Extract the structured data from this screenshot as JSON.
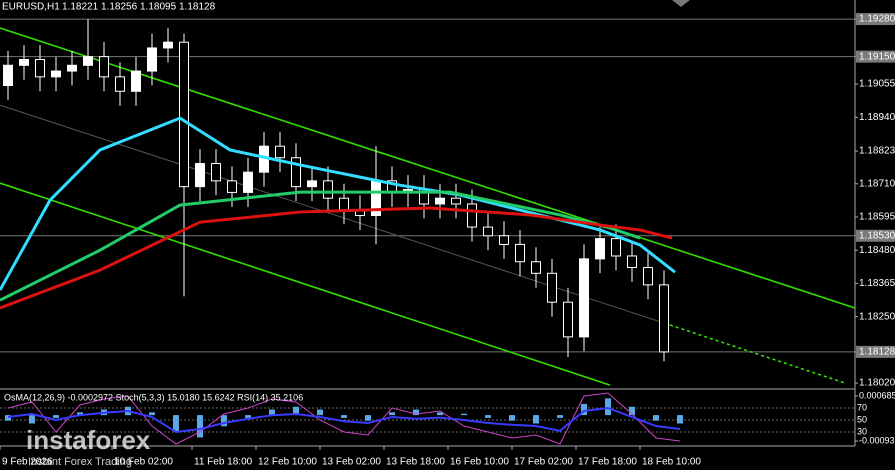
{
  "chart_data": {
    "type": "candlestick",
    "symbol": "EURUSD,H1",
    "ohlc": [
      1.18221,
      1.18256,
      1.18095,
      1.18128
    ],
    "xlim": [
      0,
      213.75
    ],
    "ylim": [
      1.18003,
      1.19346
    ],
    "xticks": [
      {
        "value": 0,
        "label": "9 Feb 2026"
      },
      {
        "value": 28,
        "label": "10 Feb 02:00"
      },
      {
        "value": 48,
        "label": "11 Feb 18:00"
      },
      {
        "value": 64,
        "label": "12 Feb 10:00"
      },
      {
        "value": 80,
        "label": "13 Feb 02:00"
      },
      {
        "value": 96,
        "label": "13 Feb 18:00"
      },
      {
        "value": 112,
        "label": "16 Feb 10:00"
      },
      {
        "value": 128,
        "label": "17 Feb 02:00"
      },
      {
        "value": 144,
        "label": "17 Feb 18:00"
      },
      {
        "value": 160,
        "label": "18 Feb 10:00"
      }
    ],
    "yticks": [
      {
        "value": 1.1928,
        "label": "1.19280"
      },
      {
        "value": 1.1915,
        "label": "1.19150"
      },
      1.19055,
      {
        "value": 1.1894,
        "label": "1.18940"
      },
      1.18823,
      {
        "value": 1.1871,
        "label": "1.18710"
      },
      1.18595,
      {
        "value": 1.1853,
        "label": "1.18530"
      },
      {
        "value": 1.1848,
        "label": "1.18480"
      },
      1.18365,
      {
        "value": 1.1825,
        "label": "1.18250"
      },
      1.18128,
      {
        "value": 1.1802,
        "label": "1.18020"
      }
    ],
    "hlines": [
      1.1928,
      1.1915,
      1.1853,
      1.18128
    ],
    "candles": {
      "x": [
        2,
        6,
        10,
        14,
        18,
        22,
        26,
        30,
        34,
        38,
        42,
        46,
        50,
        54,
        58,
        62,
        66,
        70,
        74,
        78,
        82,
        86,
        90,
        94,
        98,
        102,
        106,
        110,
        114,
        118,
        122,
        126,
        130,
        134,
        138,
        142,
        146,
        150,
        154,
        158,
        162,
        166
      ],
      "open": [
        1.1905,
        1.1912,
        1.1914,
        1.1908,
        1.191,
        1.1912,
        1.1915,
        1.1908,
        1.1903,
        1.191,
        1.1918,
        1.192,
        1.187,
        1.1878,
        1.1872,
        1.1868,
        1.1875,
        1.1884,
        1.188,
        1.187,
        1.1872,
        1.1866,
        1.1862,
        1.186,
        1.1872,
        1.1868,
        1.1869,
        1.1864,
        1.1866,
        1.1864,
        1.1856,
        1.1853,
        1.185,
        1.1844,
        1.184,
        1.183,
        1.1818,
        1.1845,
        1.1852,
        1.1846,
        1.1842,
        1.1836
      ],
      "high": [
        1.1917,
        1.1919,
        1.1919,
        1.1915,
        1.1917,
        1.1928,
        1.192,
        1.1913,
        1.1915,
        1.1923,
        1.1925,
        1.1923,
        1.1883,
        1.1883,
        1.1877,
        1.188,
        1.1889,
        1.1889,
        1.1885,
        1.1877,
        1.1877,
        1.1871,
        1.1867,
        1.1884,
        1.1877,
        1.1874,
        1.1874,
        1.1871,
        1.1871,
        1.1869,
        1.1861,
        1.1858,
        1.1855,
        1.1849,
        1.1845,
        1.1835,
        1.185,
        1.1856,
        1.1857,
        1.1851,
        1.1847,
        1.1841
      ],
      "low": [
        1.19,
        1.1907,
        1.1903,
        1.1903,
        1.1905,
        1.1907,
        1.1903,
        1.1898,
        1.1898,
        1.1905,
        1.1913,
        1.1832,
        1.1865,
        1.1867,
        1.1863,
        1.1863,
        1.187,
        1.1875,
        1.1865,
        1.1865,
        1.1861,
        1.1857,
        1.1855,
        1.185,
        1.1863,
        1.1863,
        1.1859,
        1.1859,
        1.1859,
        1.1851,
        1.1848,
        1.1845,
        1.1839,
        1.1835,
        1.1825,
        1.1811,
        1.1813,
        1.184,
        1.1841,
        1.1837,
        1.1831,
        1.18095
      ],
      "close": [
        1.1912,
        1.1914,
        1.1908,
        1.191,
        1.1912,
        1.1915,
        1.1908,
        1.1903,
        1.191,
        1.1918,
        1.192,
        1.187,
        1.1878,
        1.1872,
        1.1868,
        1.1875,
        1.1884,
        1.188,
        1.187,
        1.1872,
        1.1866,
        1.1862,
        1.186,
        1.1872,
        1.1868,
        1.1869,
        1.1864,
        1.1866,
        1.1864,
        1.1856,
        1.1853,
        1.185,
        1.1844,
        1.184,
        1.183,
        1.1818,
        1.1845,
        1.1852,
        1.1846,
        1.1842,
        1.1836,
        1.18128
      ]
    },
    "series": [
      {
        "color": "#33ddff",
        "x": [
          0,
          12.5,
          25,
          45,
          57.5,
          75,
          100,
          115,
          130,
          150,
          160,
          168.75
        ],
        "values": [
          1.18342,
          1.18653,
          1.18827,
          1.18937,
          1.18827,
          1.18775,
          1.18705,
          1.18671,
          1.18619,
          1.1855,
          1.18498,
          1.18404
        ]
      },
      {
        "color": "#22cc66",
        "x": [
          0,
          25,
          45,
          75,
          112.5,
          140,
          152.5,
          160
        ],
        "values": [
          1.18307,
          1.1848,
          1.18636,
          1.18681,
          1.18681,
          1.18602,
          1.18557,
          1.18522
        ]
      },
      {
        "color": "#dd1111",
        "x": [
          0,
          25,
          50,
          75,
          107.5,
          132.5,
          150,
          160,
          168
        ],
        "values": [
          1.1828,
          1.18411,
          1.18577,
          1.18612,
          1.18626,
          1.18602,
          1.18567,
          1.1855,
          1.18522
        ]
      }
    ],
    "channels": [
      {
        "color": "#33dd00",
        "x": [
          0,
          213.75
        ],
        "values": [
          1.19249,
          1.1828
        ]
      },
      {
        "color": "#33dd00",
        "x": [
          0,
          152.5
        ],
        "values": [
          1.18712,
          1.18013
        ]
      },
      {
        "color": "#555555",
        "x": [
          0,
          167.5
        ],
        "values": [
          1.18982,
          1.18221
        ]
      },
      {
        "color": "#33dd00",
        "dashed": true,
        "x": [
          167.5,
          211.25
        ],
        "values": [
          1.18221,
          1.1802
        ]
      }
    ],
    "indicator": {
      "title": "OsMA(12,26,9) -0.0002972 Stoch(5,3,3) 15.0180 15.6242 RSI(14) 35.2106",
      "osma_lim": [
        -0.00125,
        0.0009
      ],
      "osma_ticks": [
        0.000685,
        -0.00093
      ],
      "level_lim": [
        0,
        100
      ],
      "level_ticks": [
        70,
        50,
        30
      ],
      "x": [
        2,
        8,
        14,
        20,
        26,
        32,
        38,
        44,
        50,
        56,
        62,
        68,
        74,
        80,
        86,
        92,
        98,
        104,
        110,
        116,
        122,
        128,
        134,
        140,
        146,
        152,
        158,
        164,
        170
      ],
      "osma": {
        "color": "#5aa9e6",
        "values": [
          -0.0002,
          -0.0003,
          -0.0001,
          0.0001,
          0.0002,
          0.0003,
          0.0001,
          -0.0006,
          -0.0008,
          -0.0004,
          -0.0001,
          0.0002,
          0.0003,
          0.0002,
          -0.0001,
          -0.0002,
          0.0001,
          0.0002,
          0.0001,
          5e-05,
          -0.0001,
          -0.0002,
          -0.0003,
          -0.0001,
          0.0004,
          0.0006,
          0.0003,
          -0.0002,
          -0.0003
        ]
      },
      "rsi": {
        "color": "#3a3aff",
        "values": [
          55,
          60,
          50,
          58,
          62,
          65,
          55,
          30,
          35,
          45,
          52,
          58,
          60,
          55,
          48,
          45,
          55,
          52,
          54,
          50,
          45,
          42,
          40,
          32,
          65,
          70,
          55,
          40,
          35
        ]
      },
      "stoch": {
        "color": "#cc44cc",
        "values": [
          70,
          80,
          30,
          75,
          85,
          90,
          40,
          10,
          30,
          60,
          70,
          85,
          80,
          50,
          30,
          25,
          70,
          60,
          65,
          40,
          30,
          20,
          25,
          10,
          90,
          95,
          60,
          20,
          15
        ]
      }
    },
    "watermark": {
      "brand": "instaforex",
      "tagline": "Instant Forex Trading"
    }
  }
}
